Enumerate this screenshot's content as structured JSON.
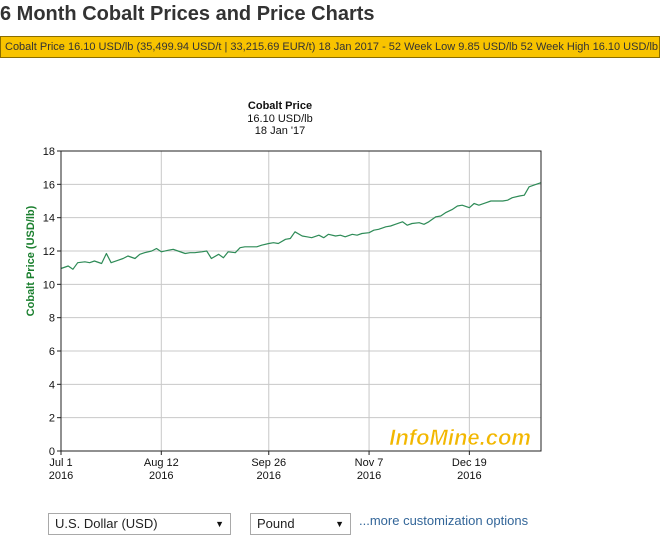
{
  "page": {
    "title": "6 Month Cobalt Prices and Price Charts",
    "ticker": "Cobalt Price 16.10 USD/lb (35,499.94 USD/t | 33,215.69 EUR/t) 18 Jan 2017 - 52 Week Low 9.85 USD/lb 52 Week High 16.10 USD/lb"
  },
  "chart_header": {
    "line1": "Cobalt Price",
    "line2": "16.10 USD/lb",
    "line3": "18 Jan '17"
  },
  "watermark": "InfoMine.com",
  "controls": {
    "currency_value": "U.S. Dollar (USD)",
    "unit_value": "Pound",
    "more_link": "...more customization options"
  },
  "colors": {
    "line": "#2e8b57",
    "axis_label": "#1a7f2e",
    "ticker_bg": "#f8c300",
    "link": "#336699",
    "watermark": "#f2b700"
  },
  "chart_data": {
    "type": "line",
    "title": "Cobalt Price",
    "ylabel": "Cobalt Price (USD/lb)",
    "xlabel": "",
    "ylim": [
      0,
      18
    ],
    "yticks": [
      0,
      2,
      4,
      6,
      8,
      10,
      12,
      14,
      16,
      18
    ],
    "xlim": [
      "2016-07-01",
      "2017-01-18"
    ],
    "xticks": [
      {
        "date": "2016-07-01",
        "label": "Jul 1",
        "year": "2016"
      },
      {
        "date": "2016-08-12",
        "label": "Aug 12",
        "year": "2016"
      },
      {
        "date": "2016-09-26",
        "label": "Sep 26",
        "year": "2016"
      },
      {
        "date": "2016-11-07",
        "label": "Nov 7",
        "year": "2016"
      },
      {
        "date": "2016-12-19",
        "label": "Dec 19",
        "year": "2016"
      }
    ],
    "grid": true,
    "series": [
      {
        "name": "Cobalt Price",
        "x": [
          "2016-07-01",
          "2016-07-04",
          "2016-07-06",
          "2016-07-08",
          "2016-07-11",
          "2016-07-13",
          "2016-07-15",
          "2016-07-18",
          "2016-07-20",
          "2016-07-22",
          "2016-07-25",
          "2016-07-27",
          "2016-07-29",
          "2016-08-01",
          "2016-08-03",
          "2016-08-05",
          "2016-08-08",
          "2016-08-10",
          "2016-08-12",
          "2016-08-15",
          "2016-08-17",
          "2016-08-19",
          "2016-08-22",
          "2016-08-24",
          "2016-08-26",
          "2016-08-29",
          "2016-08-31",
          "2016-09-02",
          "2016-09-05",
          "2016-09-07",
          "2016-09-09",
          "2016-09-12",
          "2016-09-14",
          "2016-09-16",
          "2016-09-19",
          "2016-09-21",
          "2016-09-23",
          "2016-09-26",
          "2016-09-28",
          "2016-09-30",
          "2016-10-03",
          "2016-10-05",
          "2016-10-07",
          "2016-10-10",
          "2016-10-12",
          "2016-10-14",
          "2016-10-17",
          "2016-10-19",
          "2016-10-21",
          "2016-10-24",
          "2016-10-26",
          "2016-10-28",
          "2016-10-31",
          "2016-11-02",
          "2016-11-04",
          "2016-11-07",
          "2016-11-09",
          "2016-11-11",
          "2016-11-14",
          "2016-11-16",
          "2016-11-18",
          "2016-11-21",
          "2016-11-23",
          "2016-11-25",
          "2016-11-28",
          "2016-11-30",
          "2016-12-02",
          "2016-12-05",
          "2016-12-07",
          "2016-12-09",
          "2016-12-12",
          "2016-12-14",
          "2016-12-16",
          "2016-12-19",
          "2016-12-21",
          "2016-12-23",
          "2016-12-26",
          "2016-12-28",
          "2016-12-30",
          "2017-01-02",
          "2017-01-04",
          "2017-01-06",
          "2017-01-09",
          "2017-01-11",
          "2017-01-13",
          "2017-01-16",
          "2017-01-18"
        ],
        "values": [
          10.95,
          11.1,
          10.9,
          11.3,
          11.35,
          11.3,
          11.4,
          11.25,
          11.85,
          11.3,
          11.45,
          11.55,
          11.7,
          11.55,
          11.8,
          11.9,
          12.0,
          12.15,
          11.95,
          12.05,
          12.1,
          12.0,
          11.85,
          11.9,
          11.9,
          11.95,
          12.0,
          11.55,
          11.8,
          11.6,
          11.95,
          11.9,
          12.2,
          12.25,
          12.25,
          12.25,
          12.35,
          12.45,
          12.5,
          12.45,
          12.7,
          12.75,
          13.15,
          12.9,
          12.85,
          12.8,
          12.95,
          12.8,
          13.0,
          12.9,
          12.95,
          12.85,
          13.0,
          12.95,
          13.05,
          13.1,
          13.25,
          13.3,
          13.45,
          13.5,
          13.6,
          13.75,
          13.55,
          13.65,
          13.7,
          13.6,
          13.75,
          14.05,
          14.1,
          14.3,
          14.5,
          14.7,
          14.75,
          14.6,
          14.85,
          14.75,
          14.9,
          15.0,
          15.0,
          15.0,
          15.05,
          15.2,
          15.3,
          15.35,
          15.85,
          16.0,
          16.1
        ]
      }
    ]
  }
}
